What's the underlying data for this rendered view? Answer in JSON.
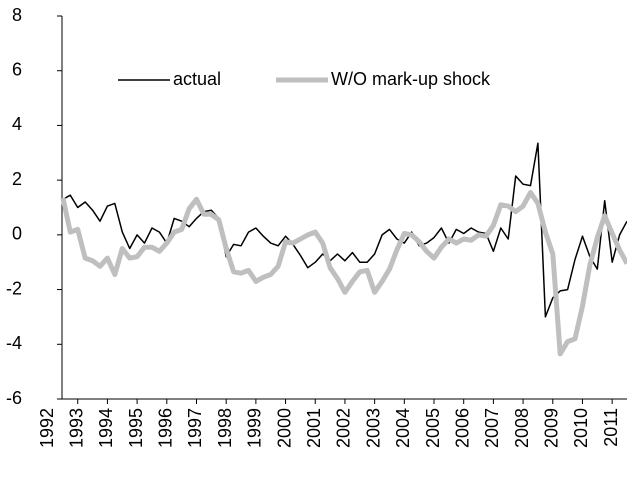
{
  "chart_data": {
    "type": "line",
    "x": [
      1992.5,
      1992.75,
      1993,
      1993.25,
      1993.5,
      1993.75,
      1994,
      1994.25,
      1994.5,
      1994.75,
      1995,
      1995.25,
      1995.5,
      1995.75,
      1996,
      1996.25,
      1996.5,
      1996.75,
      1997,
      1997.25,
      1997.5,
      1997.75,
      1998,
      1998.25,
      1998.5,
      1998.75,
      1999,
      1999.25,
      1999.5,
      1999.75,
      2000,
      2000.25,
      2000.5,
      2000.75,
      2001,
      2001.25,
      2001.5,
      2001.75,
      2002,
      2002.25,
      2002.5,
      2002.75,
      2003,
      2003.25,
      2003.5,
      2003.75,
      2004,
      2004.25,
      2004.5,
      2004.75,
      2005,
      2005.25,
      2005.5,
      2005.75,
      2006,
      2006.25,
      2006.5,
      2006.75,
      2007,
      2007.25,
      2007.5,
      2007.75,
      2008,
      2008.25,
      2008.5,
      2008.75,
      2009,
      2009.25,
      2009.5,
      2009.75,
      2010,
      2010.25,
      2010.5,
      2010.75,
      2011,
      2011.25,
      2011.5
    ],
    "series": [
      {
        "name": "actual",
        "color": "#000000",
        "width": 1.5,
        "values": [
          1.3,
          1.45,
          1.0,
          1.2,
          0.9,
          0.5,
          1.05,
          1.15,
          0.1,
          -0.5,
          0.0,
          -0.3,
          0.25,
          0.1,
          -0.3,
          0.6,
          0.5,
          0.3,
          0.6,
          0.85,
          0.9,
          0.6,
          -0.8,
          -0.35,
          -0.4,
          0.1,
          0.25,
          -0.05,
          -0.3,
          -0.4,
          -0.05,
          -0.35,
          -0.75,
          -1.2,
          -1.0,
          -0.7,
          -0.95,
          -0.7,
          -0.95,
          -0.65,
          -1.0,
          -1.0,
          -0.7,
          0.0,
          0.2,
          -0.15,
          -0.3,
          0.1,
          -0.4,
          -0.3,
          -0.1,
          0.25,
          -0.3,
          0.2,
          0.05,
          0.25,
          0.1,
          0.05,
          -0.6,
          0.25,
          -0.15,
          2.15,
          1.85,
          1.8,
          3.35,
          -3.0,
          -2.3,
          -2.05,
          -2.0,
          -0.9,
          -0.05,
          -0.8,
          -1.25,
          1.25,
          -1.0,
          0.0,
          0.5
        ]
      },
      {
        "name": "W/O mark-up shock",
        "color": "#bfbfbf",
        "width": 5,
        "values": [
          1.35,
          0.1,
          0.2,
          -0.85,
          -0.95,
          -1.15,
          -0.85,
          -1.45,
          -0.5,
          -0.85,
          -0.8,
          -0.45,
          -0.45,
          -0.6,
          -0.3,
          0.1,
          0.2,
          0.95,
          1.3,
          0.75,
          0.75,
          0.55,
          -0.5,
          -1.35,
          -1.4,
          -1.3,
          -1.7,
          -1.55,
          -1.45,
          -1.15,
          -0.25,
          -0.3,
          -0.15,
          0.0,
          0.1,
          -0.3,
          -1.2,
          -1.6,
          -2.1,
          -1.7,
          -1.35,
          -1.3,
          -2.1,
          -1.7,
          -1.25,
          -0.55,
          0.05,
          0.0,
          -0.25,
          -0.6,
          -0.85,
          -0.45,
          -0.15,
          -0.3,
          -0.15,
          -0.2,
          0.0,
          -0.05,
          0.35,
          1.1,
          1.05,
          0.85,
          1.05,
          1.55,
          1.15,
          0.1,
          -0.7,
          -4.35,
          -3.9,
          -3.8,
          -2.6,
          -1.1,
          -0.1,
          0.7,
          0.05,
          -0.55,
          -1.05
        ]
      }
    ],
    "xlim": [
      1992.47,
      2011.5
    ],
    "xticks": [
      1992,
      1993,
      1994,
      1995,
      1996,
      1997,
      1998,
      1999,
      2000,
      2001,
      2002,
      2003,
      2004,
      2005,
      2006,
      2007,
      2008,
      2009,
      2010,
      2011
    ],
    "ylim": [
      -6,
      8
    ],
    "yticks": [
      -6,
      -4,
      -2,
      0,
      2,
      4,
      6,
      8
    ],
    "legend": "top-left"
  }
}
